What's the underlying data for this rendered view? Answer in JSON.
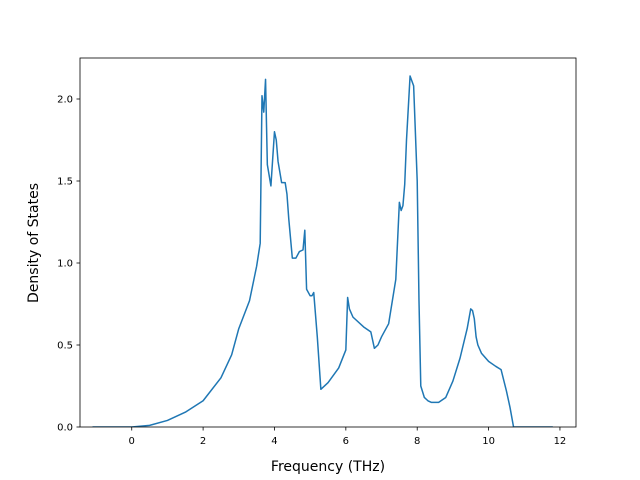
{
  "chart_data": {
    "type": "line",
    "title": "",
    "xlabel": "Frequency (THz)",
    "ylabel": "Density of States",
    "xlim": [
      -1.45,
      12.45
    ],
    "ylim": [
      0.0,
      2.25
    ],
    "xticks": [
      0,
      2,
      4,
      6,
      8,
      10,
      12
    ],
    "yticks": [
      0.0,
      0.5,
      1.0,
      1.5,
      2.0
    ],
    "ytick_labels": [
      "0.0",
      "0.5",
      "1.0",
      "1.5",
      "2.0"
    ],
    "grid": false,
    "legend": "none",
    "line_color": "#1f77b4",
    "series": [
      {
        "x": [
          -1.1,
          -0.5,
          0.0,
          0.5,
          1.0,
          1.5,
          2.0,
          2.5,
          2.8,
          3.0,
          3.3,
          3.5,
          3.6,
          3.65,
          3.7,
          3.75,
          3.8,
          3.9,
          4.0,
          4.05,
          4.1,
          4.2,
          4.3,
          4.35,
          4.4,
          4.5,
          4.6,
          4.7,
          4.8,
          4.85,
          4.9,
          5.0,
          5.05,
          5.1,
          5.2,
          5.3,
          5.5,
          5.8,
          6.0,
          6.05,
          6.1,
          6.2,
          6.5,
          6.7,
          6.8,
          6.9,
          7.0,
          7.2,
          7.4,
          7.5,
          7.55,
          7.6,
          7.65,
          7.7,
          7.8,
          7.9,
          8.0,
          8.05,
          8.1,
          8.2,
          8.3,
          8.4,
          8.6,
          8.8,
          9.0,
          9.2,
          9.4,
          9.5,
          9.55,
          9.6,
          9.65,
          9.7,
          9.8,
          10.0,
          10.2,
          10.35,
          10.5,
          10.6,
          10.7,
          10.75,
          11.0,
          11.8
        ],
        "y": [
          0.0,
          0.0,
          0.0,
          0.01,
          0.04,
          0.09,
          0.16,
          0.3,
          0.44,
          0.6,
          0.77,
          0.98,
          1.12,
          2.02,
          1.92,
          2.12,
          1.6,
          1.47,
          1.8,
          1.75,
          1.62,
          1.49,
          1.49,
          1.42,
          1.27,
          1.03,
          1.03,
          1.07,
          1.08,
          1.2,
          0.84,
          0.8,
          0.8,
          0.82,
          0.55,
          0.23,
          0.27,
          0.36,
          0.47,
          0.79,
          0.72,
          0.67,
          0.61,
          0.58,
          0.48,
          0.5,
          0.55,
          0.63,
          0.9,
          1.37,
          1.32,
          1.35,
          1.48,
          1.75,
          2.14,
          2.08,
          1.5,
          0.77,
          0.25,
          0.18,
          0.16,
          0.15,
          0.15,
          0.18,
          0.28,
          0.42,
          0.6,
          0.72,
          0.71,
          0.66,
          0.55,
          0.5,
          0.45,
          0.4,
          0.37,
          0.35,
          0.22,
          0.12,
          0.0,
          0.0,
          0.0,
          0.0
        ]
      }
    ]
  }
}
